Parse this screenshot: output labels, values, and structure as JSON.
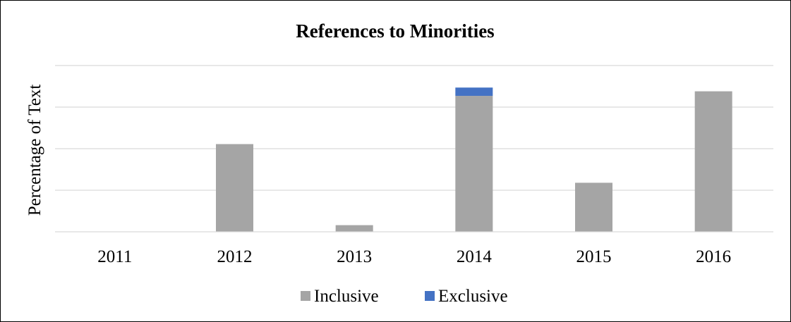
{
  "chart_data": {
    "type": "bar",
    "stacked": true,
    "title": "References to Minorities",
    "xlabel": "",
    "ylabel": "Percentage of Text",
    "categories": [
      "2011",
      "2012",
      "2013",
      "2014",
      "2015",
      "2016"
    ],
    "series": [
      {
        "name": "Inclusive",
        "color": "#a5a5a5",
        "values": [
          0,
          2.11,
          0.16,
          3.27,
          1.18,
          3.38
        ]
      },
      {
        "name": "Exclusive",
        "color": "#4472c4",
        "values": [
          0,
          0,
          0,
          0.2,
          0,
          0
        ]
      }
    ],
    "ylim": [
      0,
      4
    ],
    "y_tick_labels_shown": false,
    "grid": true,
    "legend_position": "bottom"
  }
}
